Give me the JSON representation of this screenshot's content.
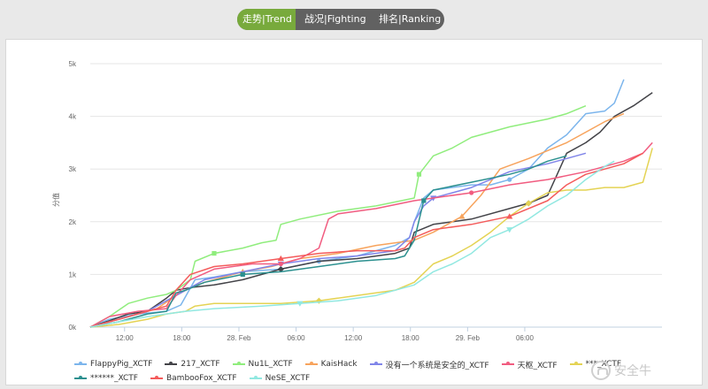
{
  "tabs": [
    {
      "label": "走势|Trend",
      "active": true
    },
    {
      "label": "战况|Fighting",
      "active": false
    },
    {
      "label": "排名|Ranking",
      "active": false
    }
  ],
  "colors": {
    "accent": "#78aa3c",
    "tab_bg": "#616161"
  },
  "watermark": "安全牛",
  "chart_data": {
    "type": "line",
    "ylabel": "分值",
    "yticks": [
      "0k",
      "1k",
      "2k",
      "3k",
      "4k",
      "5k"
    ],
    "xticks": [
      "12:00",
      "18:00",
      "28. Feb",
      "06:00",
      "12:00",
      "18:00",
      "29. Feb",
      "06:00"
    ],
    "ylim": [
      0,
      5000
    ],
    "x_unit": "hours from the 0k corner; 12:00 at ~3.6h, 6h between ticks",
    "grid": true,
    "legend_position": "bottom",
    "series": [
      {
        "name": "FlappyPig_XCTF",
        "color": "#7cb5ec",
        "marker": "circle",
        "points": [
          [
            0,
            0
          ],
          [
            2,
            150
          ],
          [
            5,
            250
          ],
          [
            8,
            300
          ],
          [
            9.5,
            420
          ],
          [
            11,
            900
          ],
          [
            13,
            950
          ],
          [
            16,
            1050
          ],
          [
            20,
            1100
          ],
          [
            24,
            1250
          ],
          [
            28,
            1350
          ],
          [
            32,
            1550
          ],
          [
            33.5,
            1700
          ],
          [
            34,
            2000
          ],
          [
            35,
            2450
          ],
          [
            36,
            2600
          ],
          [
            40,
            2700
          ],
          [
            42,
            2700
          ],
          [
            44,
            2800
          ],
          [
            46,
            3000
          ],
          [
            48,
            3400
          ],
          [
            50,
            3650
          ],
          [
            52,
            4050
          ],
          [
            54,
            4100
          ],
          [
            55,
            4250
          ],
          [
            56,
            4700
          ]
        ]
      },
      {
        "name": "217_XCTF",
        "color": "#434348",
        "marker": "diamond",
        "points": [
          [
            0,
            0
          ],
          [
            2,
            120
          ],
          [
            4,
            250
          ],
          [
            6,
            300
          ],
          [
            8,
            550
          ],
          [
            9,
            700
          ],
          [
            10.5,
            750
          ],
          [
            13,
            800
          ],
          [
            16,
            900
          ],
          [
            20,
            1100
          ],
          [
            24,
            1250
          ],
          [
            28,
            1300
          ],
          [
            32,
            1400
          ],
          [
            33.5,
            1500
          ],
          [
            34,
            1800
          ],
          [
            36,
            1950
          ],
          [
            40,
            2050
          ],
          [
            44,
            2250
          ],
          [
            46,
            2350
          ],
          [
            48,
            2500
          ],
          [
            49,
            2900
          ],
          [
            50,
            3300
          ],
          [
            52,
            3500
          ],
          [
            53.5,
            3700
          ],
          [
            55,
            4000
          ],
          [
            57,
            4200
          ],
          [
            59,
            4450
          ]
        ]
      },
      {
        "name": "Nu1L_XCTF",
        "color": "#90ed7d",
        "marker": "square",
        "points": [
          [
            0,
            0
          ],
          [
            2,
            200
          ],
          [
            4,
            450
          ],
          [
            6,
            550
          ],
          [
            8,
            620
          ],
          [
            9,
            700
          ],
          [
            10.5,
            900
          ],
          [
            11,
            1250
          ],
          [
            13,
            1400
          ],
          [
            16,
            1500
          ],
          [
            18,
            1600
          ],
          [
            19.5,
            1650
          ],
          [
            20,
            1950
          ],
          [
            22,
            2050
          ],
          [
            26,
            2200
          ],
          [
            30,
            2300
          ],
          [
            34,
            2450
          ],
          [
            34.5,
            2900
          ],
          [
            36,
            3250
          ],
          [
            38,
            3400
          ],
          [
            40,
            3600
          ],
          [
            44,
            3800
          ],
          [
            48,
            3950
          ],
          [
            50,
            4050
          ],
          [
            52,
            4200
          ]
        ]
      },
      {
        "name": "KaisHack",
        "color": "#f7a35c",
        "marker": "triangle",
        "points": [
          [
            0,
            0
          ],
          [
            2,
            100
          ],
          [
            4,
            200
          ],
          [
            6,
            300
          ],
          [
            7,
            350
          ],
          [
            9,
            600
          ],
          [
            10.5,
            750
          ],
          [
            12,
            850
          ],
          [
            16,
            1050
          ],
          [
            19,
            1150
          ],
          [
            22,
            1300
          ],
          [
            26,
            1400
          ],
          [
            30,
            1550
          ],
          [
            34,
            1650
          ],
          [
            36,
            1800
          ],
          [
            38,
            2000
          ],
          [
            39,
            2100
          ],
          [
            41,
            2500
          ],
          [
            43,
            3000
          ],
          [
            46,
            3200
          ],
          [
            50,
            3500
          ],
          [
            52,
            3700
          ],
          [
            54,
            3900
          ],
          [
            56,
            4050
          ]
        ]
      },
      {
        "name": "没有一个系统是安全的_XCTF",
        "color": "#8085e9",
        "marker": "triangle-down",
        "points": [
          [
            0,
            0
          ],
          [
            3,
            150
          ],
          [
            6,
            300
          ],
          [
            8,
            500
          ],
          [
            10,
            700
          ],
          [
            12,
            900
          ],
          [
            16,
            1050
          ],
          [
            20,
            1200
          ],
          [
            24,
            1300
          ],
          [
            28,
            1350
          ],
          [
            32,
            1450
          ],
          [
            33.5,
            1700
          ],
          [
            34,
            2000
          ],
          [
            35,
            2300
          ],
          [
            36,
            2450
          ],
          [
            40,
            2650
          ],
          [
            44,
            2950
          ],
          [
            48,
            3100
          ],
          [
            50,
            3200
          ],
          [
            52,
            3300
          ]
        ]
      },
      {
        "name": "天枢_XCTF",
        "color": "#f15c80",
        "marker": "circle",
        "points": [
          [
            0,
            0
          ],
          [
            2,
            200
          ],
          [
            5,
            300
          ],
          [
            8,
            350
          ],
          [
            9,
            600
          ],
          [
            10.5,
            900
          ],
          [
            13,
            1100
          ],
          [
            17,
            1200
          ],
          [
            20,
            1200
          ],
          [
            22,
            1300
          ],
          [
            24,
            1500
          ],
          [
            25,
            2050
          ],
          [
            26,
            2150
          ],
          [
            30,
            2250
          ],
          [
            34,
            2400
          ],
          [
            36,
            2450
          ],
          [
            40,
            2550
          ],
          [
            44,
            2700
          ],
          [
            48,
            2800
          ],
          [
            52,
            2950
          ],
          [
            56,
            3150
          ],
          [
            58,
            3300
          ],
          [
            59,
            3500
          ]
        ]
      },
      {
        "name": "***_XCTF",
        "color": "#e4d354",
        "marker": "diamond",
        "points": [
          [
            0,
            0
          ],
          [
            3,
            50
          ],
          [
            6,
            150
          ],
          [
            8,
            250
          ],
          [
            10,
            300
          ],
          [
            11,
            400
          ],
          [
            13,
            450
          ],
          [
            20,
            450
          ],
          [
            24,
            500
          ],
          [
            28,
            600
          ],
          [
            32,
            700
          ],
          [
            34,
            850
          ],
          [
            36,
            1200
          ],
          [
            38,
            1350
          ],
          [
            40,
            1550
          ],
          [
            42,
            1800
          ],
          [
            44,
            2100
          ],
          [
            46,
            2350
          ],
          [
            48,
            2550
          ],
          [
            50,
            2600
          ],
          [
            52,
            2600
          ],
          [
            54,
            2650
          ],
          [
            56,
            2650
          ],
          [
            58,
            2750
          ],
          [
            59,
            3400
          ]
        ]
      },
      {
        "name": "******_XCTF",
        "color": "#2b908f",
        "marker": "square",
        "points": [
          [
            0,
            0
          ],
          [
            3,
            100
          ],
          [
            6,
            250
          ],
          [
            8,
            300
          ],
          [
            9,
            650
          ],
          [
            10,
            700
          ],
          [
            12,
            850
          ],
          [
            16,
            1000
          ],
          [
            20,
            1050
          ],
          [
            24,
            1150
          ],
          [
            28,
            1250
          ],
          [
            32,
            1300
          ],
          [
            33,
            1350
          ],
          [
            34,
            1650
          ],
          [
            35,
            2400
          ],
          [
            36,
            2600
          ],
          [
            40,
            2750
          ],
          [
            44,
            2900
          ],
          [
            46,
            3000
          ],
          [
            48,
            3150
          ],
          [
            50,
            3250
          ]
        ]
      },
      {
        "name": "BambooFox_XCTF",
        "color": "#f45b5b",
        "marker": "triangle",
        "points": [
          [
            0,
            0
          ],
          [
            3,
            150
          ],
          [
            6,
            300
          ],
          [
            8,
            400
          ],
          [
            9,
            700
          ],
          [
            10.5,
            1000
          ],
          [
            13,
            1150
          ],
          [
            16,
            1200
          ],
          [
            20,
            1300
          ],
          [
            24,
            1400
          ],
          [
            28,
            1450
          ],
          [
            32,
            1450
          ],
          [
            33,
            1500
          ],
          [
            34,
            1700
          ],
          [
            36,
            1850
          ],
          [
            40,
            1950
          ],
          [
            44,
            2100
          ],
          [
            48,
            2400
          ],
          [
            50,
            2700
          ],
          [
            52,
            2900
          ],
          [
            54,
            3000
          ],
          [
            56,
            3100
          ],
          [
            58,
            3300
          ]
        ]
      },
      {
        "name": "NeSE_XCTF",
        "color": "#91e8e1",
        "marker": "triangle-down",
        "points": [
          [
            0,
            0
          ],
          [
            3,
            100
          ],
          [
            6,
            200
          ],
          [
            8,
            250
          ],
          [
            10,
            300
          ],
          [
            13,
            350
          ],
          [
            18,
            400
          ],
          [
            22,
            450
          ],
          [
            26,
            500
          ],
          [
            30,
            600
          ],
          [
            34,
            800
          ],
          [
            36,
            1050
          ],
          [
            38,
            1200
          ],
          [
            40,
            1400
          ],
          [
            42,
            1700
          ],
          [
            44,
            1850
          ],
          [
            46,
            2050
          ],
          [
            48,
            2300
          ],
          [
            50,
            2500
          ],
          [
            52,
            2800
          ],
          [
            54,
            3050
          ],
          [
            55,
            3150
          ]
        ]
      }
    ]
  }
}
